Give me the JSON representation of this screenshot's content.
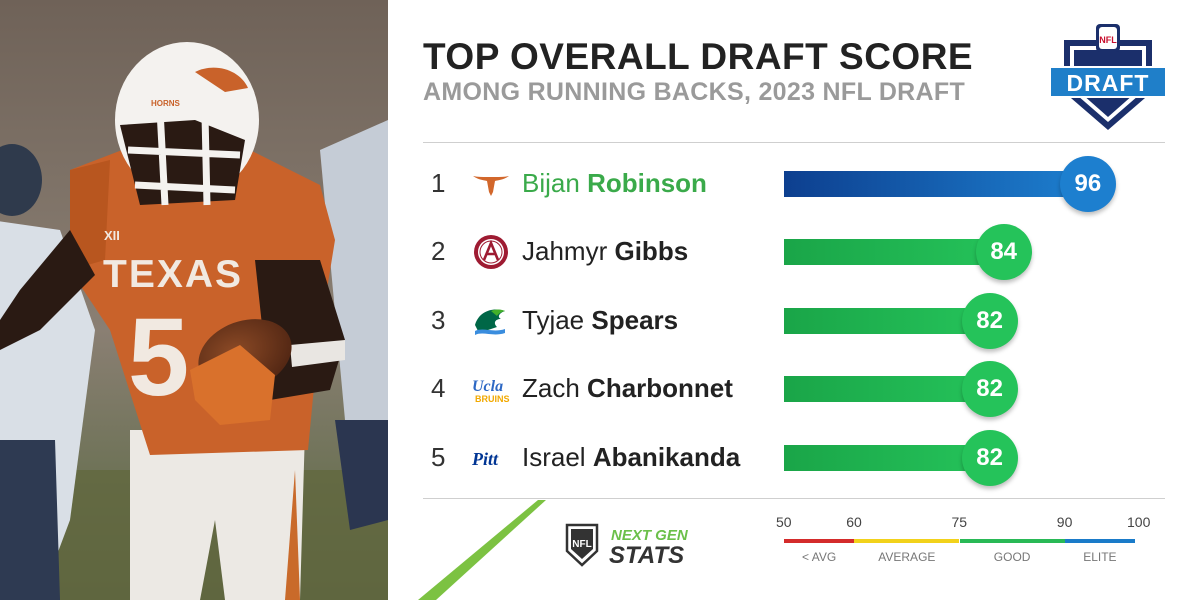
{
  "header": {
    "title": "TOP OVERALL DRAFT SCORE",
    "subtitle": "AMONG RUNNING BACKS, 2023 NFL DRAFT"
  },
  "nfl_draft_logo": {
    "label": "DRAFT",
    "shield_text": "NFL"
  },
  "photo": {
    "jersey_text": "TEXAS",
    "jersey_number": "5",
    "helmet_text": "HORNS"
  },
  "players": [
    {
      "rank": "1",
      "first": "Bijan",
      "last": "Robinson",
      "score": 96,
      "school_icon": "texas-longhorn-icon"
    },
    {
      "rank": "2",
      "first": "Jahmyr",
      "last": "Gibbs",
      "score": 84,
      "school_icon": "alabama-icon"
    },
    {
      "rank": "3",
      "first": "Tyjae",
      "last": "Spears",
      "score": 82,
      "school_icon": "tulane-wave-icon"
    },
    {
      "rank": "4",
      "first": "Zach",
      "last": "Charbonnet",
      "score": 82,
      "school_icon": "ucla-icon"
    },
    {
      "rank": "5",
      "first": "Israel",
      "last": "Abanikanda",
      "score": 82,
      "school_icon": "pitt-icon"
    }
  ],
  "school_logo_text": {
    "ucla": "Ucla",
    "ucla_sub": "BRUINS",
    "pitt": "Pitt"
  },
  "chart_data": {
    "type": "bar",
    "title": "TOP OVERALL DRAFT SCORE",
    "subtitle": "AMONG RUNNING BACKS, 2023 NFL DRAFT",
    "categories": [
      "Bijan Robinson",
      "Jahmyr Gibbs",
      "Tyjae Spears",
      "Zach Charbonnet",
      "Israel Abanikanda"
    ],
    "values": [
      96,
      84,
      82,
      82,
      82
    ],
    "xlim": [
      50,
      100
    ],
    "orientation": "horizontal",
    "scale_ticks": [
      "50",
      "60",
      "75",
      "90",
      "100"
    ],
    "scale_segments": [
      {
        "label": "< AVG",
        "from": 50,
        "to": 60,
        "color": "#d42b2b"
      },
      {
        "label": "AVERAGE",
        "from": 60,
        "to": 75,
        "color": "#f2d21b"
      },
      {
        "label": "GOOD",
        "from": 75,
        "to": 90,
        "color": "#29b956"
      },
      {
        "label": "ELITE",
        "from": 90,
        "to": 100,
        "color": "#1a7bc9"
      }
    ]
  },
  "branding": {
    "ngs_line1": "NEXT GEN",
    "ngs_line2": "STATS",
    "nfl_text": "NFL"
  },
  "colors": {
    "elite_dark": "#0d3f8f",
    "elite_light": "#1d7fcf",
    "good": "#25c35a",
    "good_dark": "#1aa548",
    "name_highlight": "#3aaa4a"
  }
}
